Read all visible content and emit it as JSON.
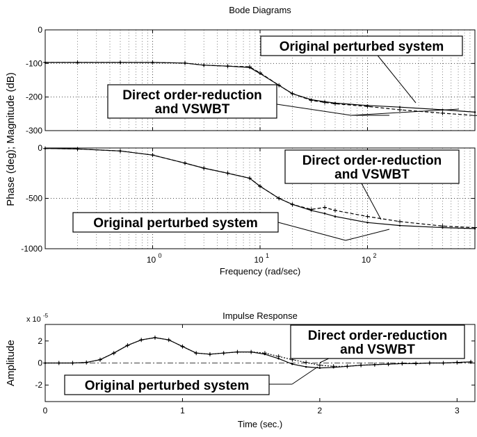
{
  "chart_data": [
    {
      "type": "line",
      "title": "Bode Diagrams",
      "ylabel": "Phase (deg); Magnitude (dB)",
      "log_x": true,
      "grid": true,
      "xlim": [
        0.1,
        1000
      ],
      "ylim": [
        -300,
        0
      ],
      "xticks": [
        1,
        10,
        100
      ],
      "yticks": [
        -300,
        -200,
        -100,
        0
      ],
      "x": [
        0.1,
        0.2,
        0.5,
        1,
        2,
        3,
        5,
        8,
        10,
        15,
        20,
        30,
        40,
        50,
        100,
        200,
        500,
        1000
      ],
      "series": [
        {
          "name": "Original perturbed system",
          "color": "#000000",
          "style": "solid",
          "marker": "dot",
          "values": [
            -97,
            -97,
            -97,
            -97,
            -99,
            -105,
            -108,
            -112,
            -130,
            -165,
            -190,
            -208,
            -214,
            -218,
            -225,
            -230,
            -238,
            -245
          ]
        },
        {
          "name": "Direct order-reduction and VSWBT",
          "color": "#000000",
          "style": "dashed",
          "marker": "plus",
          "values": [
            -97,
            -97,
            -97,
            -97,
            -99,
            -105,
            -108,
            -110,
            -128,
            -165,
            -190,
            -210,
            -216,
            -220,
            -228,
            -238,
            -248,
            -255
          ]
        }
      ],
      "annotations": [
        {
          "lines": [
            "Original perturbed system"
          ]
        },
        {
          "lines": [
            "Direct order-reduction",
            "and VSWBT"
          ]
        }
      ]
    },
    {
      "type": "line",
      "xlabel": "Frequency (rad/sec)",
      "log_x": true,
      "grid": true,
      "xlim": [
        0.1,
        1000
      ],
      "ylim": [
        -1000,
        0
      ],
      "xticks": [
        {
          "value": 1,
          "label": "10",
          "exponent": "0"
        },
        {
          "value": 10,
          "label": "10",
          "exponent": "1"
        },
        {
          "value": 100,
          "label": "10",
          "exponent": "2"
        }
      ],
      "yticks": [
        -1000,
        -500,
        0
      ],
      "x": [
        0.1,
        0.2,
        0.5,
        1,
        2,
        3,
        5,
        8,
        10,
        15,
        20,
        30,
        40,
        50,
        100,
        200,
        500,
        1000
      ],
      "series": [
        {
          "name": "Original perturbed system",
          "color": "#000000",
          "style": "solid",
          "marker": "dot",
          "values": [
            -5,
            -10,
            -30,
            -70,
            -150,
            -200,
            -250,
            -300,
            -380,
            -500,
            -560,
            -620,
            -650,
            -680,
            -740,
            -770,
            -790,
            -800
          ]
        },
        {
          "name": "Direct order-reduction and VSWBT",
          "color": "#000000",
          "style": "dashed",
          "marker": "plus",
          "values": [
            -5,
            -10,
            -30,
            -70,
            -150,
            -200,
            -250,
            -300,
            -380,
            -500,
            -560,
            -610,
            -590,
            -620,
            -680,
            -730,
            -775,
            -790
          ]
        }
      ],
      "annotations": [
        {
          "lines": [
            "Direct order-reduction",
            "and VSWBT"
          ]
        },
        {
          "lines": [
            "Original perturbed system"
          ]
        }
      ]
    },
    {
      "type": "line",
      "title": "Impulse Response",
      "xlabel": "Time (sec.)",
      "ylabel": "Amplitude",
      "y_multiplier": {
        "base": "x 10",
        "exponent": "-5"
      },
      "log_x": false,
      "grid": false,
      "xlim": [
        0,
        3.13
      ],
      "ylim": [
        -3.5,
        3.5
      ],
      "xticks": [
        0,
        1,
        2,
        3
      ],
      "yticks": [
        -2,
        0,
        2
      ],
      "x": [
        0,
        0.1,
        0.2,
        0.3,
        0.4,
        0.5,
        0.6,
        0.7,
        0.8,
        0.9,
        1.0,
        1.1,
        1.2,
        1.3,
        1.4,
        1.5,
        1.6,
        1.7,
        1.8,
        1.9,
        2.0,
        2.1,
        2.2,
        2.3,
        2.4,
        2.5,
        2.6,
        2.7,
        2.8,
        2.9,
        3.0,
        3.1
      ],
      "series": [
        {
          "name": "Original perturbed system",
          "color": "#000000",
          "style": "solid",
          "marker": "dot",
          "values": [
            0,
            0,
            0,
            0.05,
            0.3,
            0.9,
            1.6,
            2.1,
            2.3,
            2.1,
            1.5,
            0.9,
            0.8,
            0.9,
            1.0,
            1.0,
            0.8,
            0.4,
            -0.1,
            -0.35,
            -0.45,
            -0.4,
            -0.3,
            -0.2,
            -0.15,
            -0.1,
            -0.05,
            -0.05,
            0,
            0,
            0.05,
            0.1
          ]
        },
        {
          "name": "Direct order-reduction and VSWBT",
          "color": "#000000",
          "style": "dotted",
          "marker": "plus",
          "values": [
            0,
            0,
            0,
            0.05,
            0.3,
            0.9,
            1.6,
            2.1,
            2.3,
            2.1,
            1.5,
            0.9,
            0.8,
            0.9,
            1.0,
            1.0,
            0.9,
            0.6,
            0.3,
            0.05,
            -0.2,
            -0.3,
            -0.3,
            -0.2,
            -0.15,
            -0.1,
            -0.05,
            -0.05,
            0,
            0,
            0.05,
            0.1
          ]
        }
      ],
      "annotations": [
        {
          "lines": [
            "Direct order-reduction",
            "and VSWBT"
          ]
        },
        {
          "lines": [
            "Original perturbed system"
          ]
        }
      ]
    }
  ]
}
